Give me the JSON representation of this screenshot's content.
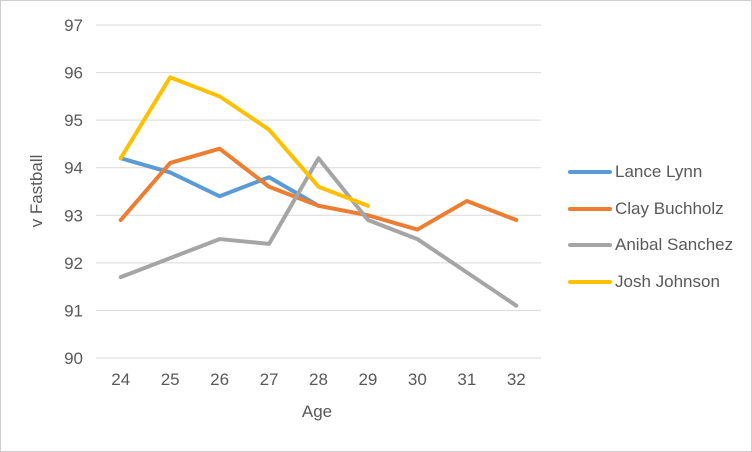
{
  "window": {
    "background_color": "#FFFFFF",
    "frame_border_color": "#D0CECE"
  },
  "chart_data": {
    "type": "line",
    "ylabel": "v Fastball",
    "xlabel": "Age",
    "ylim": [
      90,
      97
    ],
    "yticks": [
      90,
      91,
      92,
      93,
      94,
      95,
      96,
      97
    ],
    "xticks": [
      24,
      25,
      26,
      27,
      28,
      29,
      30,
      31,
      32
    ],
    "grid": true,
    "gridline_color": "#D9D9D9",
    "axis_text_color": "#595959",
    "legend_position": "right",
    "series": [
      {
        "name": "Lance Lynn",
        "color": "#5B9BD5",
        "x": [
          24,
          25,
          26,
          27,
          28
        ],
        "values": [
          94.2,
          93.9,
          93.4,
          93.8,
          93.2
        ]
      },
      {
        "name": "Clay Buchholz",
        "color": "#ED7D31",
        "x": [
          24,
          25,
          26,
          27,
          28,
          29,
          30,
          31,
          32
        ],
        "values": [
          92.9,
          94.1,
          94.4,
          93.6,
          93.2,
          93.0,
          92.7,
          93.3,
          92.9
        ]
      },
      {
        "name": "Anibal Sanchez",
        "color": "#A5A5A5",
        "x": [
          24,
          25,
          26,
          27,
          28,
          29,
          30,
          31,
          32
        ],
        "values": [
          91.7,
          92.1,
          92.5,
          92.4,
          94.2,
          92.9,
          92.5,
          91.8,
          91.1
        ]
      },
      {
        "name": "Josh Johnson",
        "color": "#FFC000",
        "x": [
          24,
          25,
          26,
          27,
          28,
          29
        ],
        "values": [
          94.2,
          95.9,
          95.5,
          94.8,
          93.6,
          93.2
        ]
      }
    ]
  }
}
